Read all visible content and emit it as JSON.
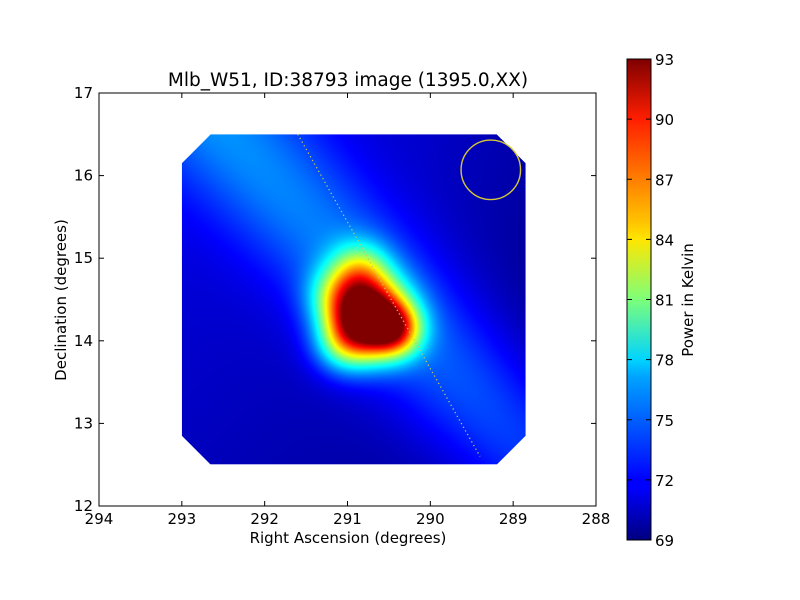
{
  "chart_data": {
    "type": "heatmap",
    "title": "Mlb_W51, ID:38793 image (1395.0,XX)",
    "xlabel": "Right Ascension (degrees)",
    "ylabel": "Declination (degrees)",
    "xlim": [
      294,
      288
    ],
    "ylim": [
      12,
      17
    ],
    "x_axis_inverted": true,
    "xticks": [
      "294",
      "293",
      "292",
      "291",
      "290",
      "289",
      "288"
    ],
    "yticks": [
      "12",
      "13",
      "14",
      "15",
      "16",
      "17"
    ],
    "colorbar": {
      "label": "Power in Kelvin",
      "range": [
        69,
        93
      ],
      "ticks": [
        "69",
        "72",
        "75",
        "78",
        "81",
        "84",
        "87",
        "90",
        "93"
      ],
      "colormap": "jet"
    },
    "map_extent": {
      "ra": [
        293.0,
        288.85
      ],
      "dec": [
        12.5,
        16.5
      ],
      "corner_cut_deg": 0.35
    },
    "background_level": 69.5,
    "gradient": {
      "description": "cooler toward lower-left, warmer ridge toward upper-left",
      "amplitude": 5.5
    },
    "peak": {
      "ra": 290.75,
      "dec": 14.28,
      "value": 93
    },
    "sources": [
      {
        "ra": 290.75,
        "dec": 14.28,
        "amplitude": 23.0,
        "sigma": 0.32
      },
      {
        "ra": 290.42,
        "dec": 14.12,
        "amplitude": 10.0,
        "sigma": 0.22
      },
      {
        "ra": 290.85,
        "dec": 14.85,
        "amplitude": 7.0,
        "sigma": 0.25
      },
      {
        "ra": 291.05,
        "dec": 13.95,
        "amplitude": 6.0,
        "sigma": 0.25
      },
      {
        "ra": 291.15,
        "dec": 14.55,
        "amplitude": 5.0,
        "sigma": 0.25
      }
    ],
    "scan_line": {
      "start": {
        "ra": 291.6,
        "dec": 16.5
      },
      "end": {
        "ra": 289.4,
        "dec": 12.6
      },
      "color": "#c8c85a",
      "style": "dotted"
    },
    "beam_circle": {
      "center": {
        "ra": 289.27,
        "dec": 16.07
      },
      "radius_deg": 0.36,
      "color": "#d4c83a"
    },
    "grid": false,
    "legend": "none"
  }
}
